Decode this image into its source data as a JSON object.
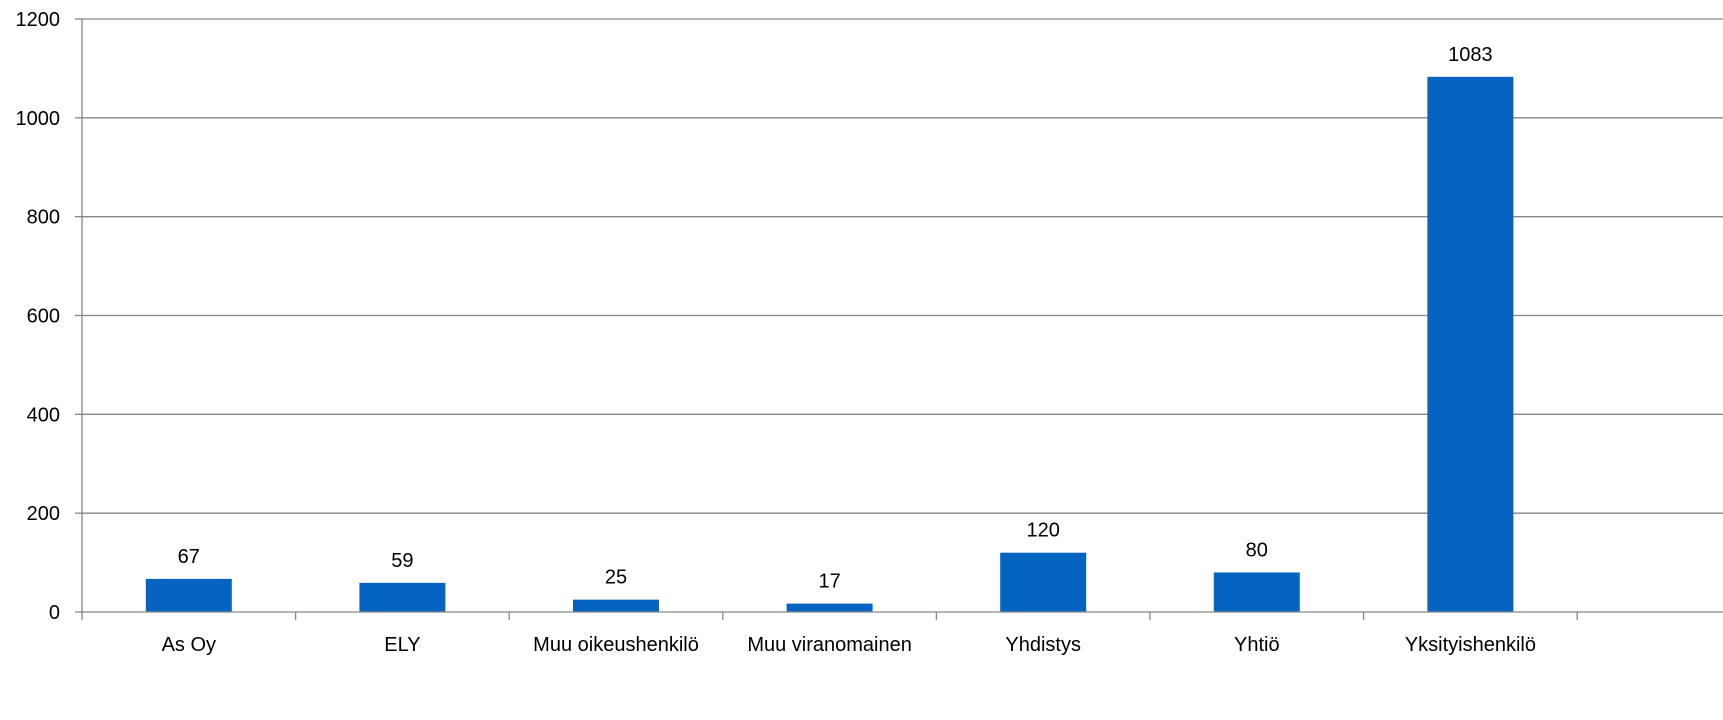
{
  "chart_data": {
    "type": "bar",
    "title": "",
    "xlabel": "",
    "ylabel": "",
    "categories": [
      "As Oy",
      "ELY",
      "Muu oikeushenkilö",
      "Muu viranomainen",
      "Yhdistys",
      "Yhtiö",
      "Yksityishenkilö"
    ],
    "values": [
      67,
      59,
      25,
      17,
      120,
      80,
      1083
    ],
    "data_labels": [
      "67",
      "59",
      "25",
      "17",
      "120",
      "80",
      "1083"
    ],
    "ylim": [
      0,
      1200
    ],
    "y_ticks": [
      0,
      200,
      400,
      600,
      800,
      1000,
      1200
    ],
    "y_tick_labels": [
      "0",
      "200",
      "400",
      "600",
      "800",
      "1000",
      "1200"
    ],
    "bar_color": "#0563C1",
    "grid": true,
    "legend": "none"
  }
}
